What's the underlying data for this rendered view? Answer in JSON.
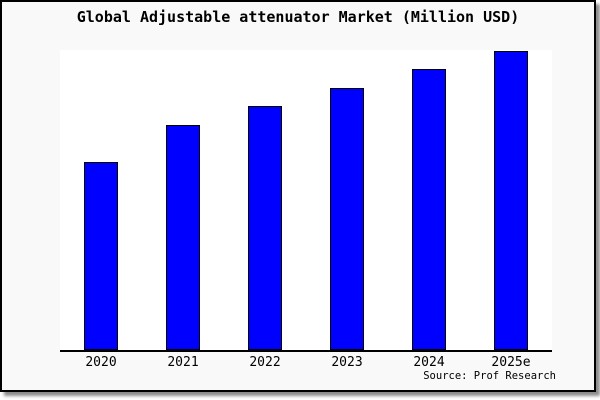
{
  "title": "Global Adjustable attenuator Market (Million USD)",
  "source": "Source: Prof Research",
  "colors": {
    "bar_fill": "#0000ff",
    "bar_border": "#000000",
    "frame_background": "#f9f9f9",
    "plot_background": "#ffffff",
    "frame_border": "#000000",
    "text": "#000000"
  },
  "chart_data": {
    "type": "bar",
    "title": "Global Adjustable attenuator Market (Million USD)",
    "categories": [
      "2020",
      "2021",
      "2022",
      "2023",
      "2024",
      "2025e"
    ],
    "values": [
      188,
      225,
      244,
      262,
      281,
      299
    ],
    "values_unit": "relative-pixel-height",
    "value_axis_note": "no y-axis line, ticks or numeric labels are shown; bar heights are relative only",
    "ylim": [
      0,
      300
    ],
    "xlabel": "",
    "ylabel": "",
    "legend": "none",
    "grid": false,
    "y_axis_visible": false,
    "x_axis_line_visible": true,
    "bar_color": "#0000ff",
    "bar_border_color": "#000000",
    "source": "Source: Prof Research"
  }
}
